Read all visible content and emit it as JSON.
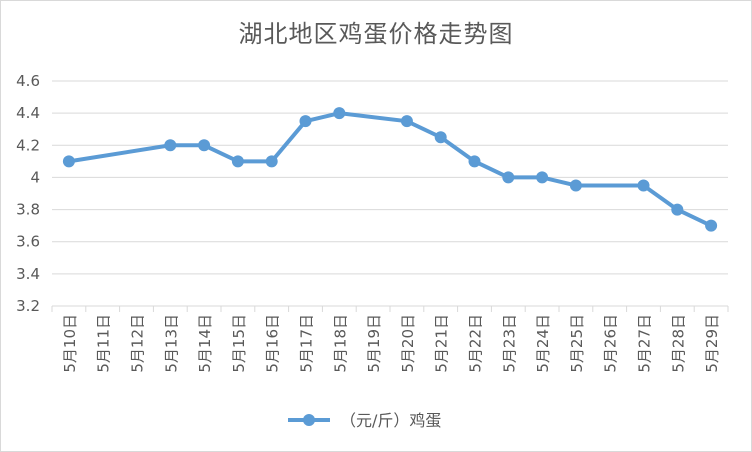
{
  "chart_data": {
    "type": "line",
    "title": "湖北地区鸡蛋价格走势图",
    "xlabel": "",
    "ylabel": "",
    "categories": [
      "5月10日",
      "5月11日",
      "5月12日",
      "5月13日",
      "5月14日",
      "5月15日",
      "5月16日",
      "5月17日",
      "5月18日",
      "5月19日",
      "5月20日",
      "5月21日",
      "5月22日",
      "5月23日",
      "5月24日",
      "5月25日",
      "5月26日",
      "5月27日",
      "5月28日",
      "5月29日"
    ],
    "series": [
      {
        "name": "（元/斤）鸡蛋",
        "points": [
          {
            "x": "5月10日",
            "y": 4.1
          },
          {
            "x": "5月13日",
            "y": 4.2
          },
          {
            "x": "5月14日",
            "y": 4.2
          },
          {
            "x": "5月15日",
            "y": 4.1
          },
          {
            "x": "5月16日",
            "y": 4.1
          },
          {
            "x": "5月17日",
            "y": 4.35
          },
          {
            "x": "5月18日",
            "y": 4.4
          },
          {
            "x": "5月20日",
            "y": 4.35
          },
          {
            "x": "5月21日",
            "y": 4.25
          },
          {
            "x": "5月22日",
            "y": 4.1
          },
          {
            "x": "5月23日",
            "y": 4.0
          },
          {
            "x": "5月24日",
            "y": 4.0
          },
          {
            "x": "5月25日",
            "y": 3.95
          },
          {
            "x": "5月27日",
            "y": 3.95
          },
          {
            "x": "5月28日",
            "y": 3.8
          },
          {
            "x": "5月29日",
            "y": 3.7
          }
        ]
      }
    ],
    "ylim": [
      3.2,
      4.6
    ],
    "yticks": [
      "3.2",
      "3.4",
      "3.6",
      "3.8",
      "4",
      "4.2",
      "4.4",
      "4.6"
    ],
    "grid": true,
    "legend_position": "bottom",
    "series_color": "#5b9bd5"
  }
}
